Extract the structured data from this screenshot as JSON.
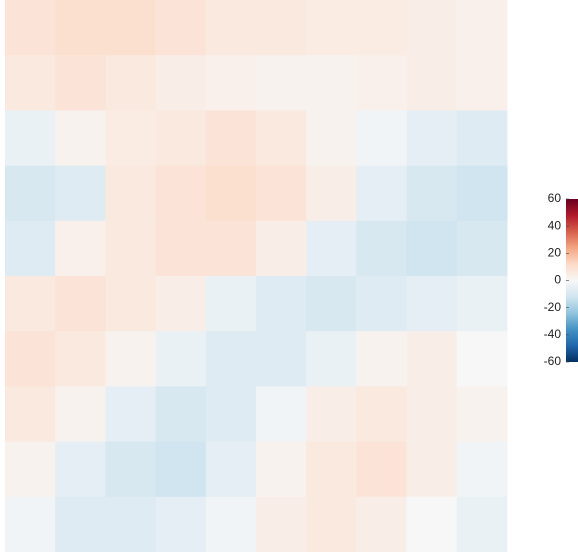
{
  "chart_data": {
    "type": "heatmap",
    "colorscale": "RdBu",
    "z": [
      [
        8,
        10,
        10,
        8,
        6,
        6,
        5,
        5,
        4,
        3
      ],
      [
        6,
        8,
        6,
        4,
        3,
        2,
        2,
        3,
        4,
        3
      ],
      [
        -4,
        2,
        5,
        6,
        8,
        6,
        2,
        -2,
        -6,
        -8
      ],
      [
        -10,
        -8,
        6,
        8,
        10,
        8,
        4,
        -6,
        -10,
        -12
      ],
      [
        -8,
        3,
        6,
        8,
        8,
        4,
        -6,
        -10,
        -12,
        -10
      ],
      [
        6,
        8,
        6,
        4,
        -4,
        -8,
        -10,
        -8,
        -6,
        -4
      ],
      [
        8,
        6,
        2,
        -4,
        -8,
        -8,
        -4,
        2,
        4,
        0
      ],
      [
        6,
        2,
        -6,
        -10,
        -8,
        -2,
        4,
        6,
        4,
        2
      ],
      [
        2,
        -6,
        -10,
        -12,
        -6,
        2,
        6,
        8,
        4,
        -2
      ],
      [
        -2,
        -8,
        -8,
        -6,
        -2,
        4,
        6,
        4,
        0,
        -4
      ]
    ],
    "zlim": [
      -60,
      60
    ],
    "zticks": [
      60,
      40,
      20,
      0,
      -20,
      -40,
      -60
    ]
  }
}
